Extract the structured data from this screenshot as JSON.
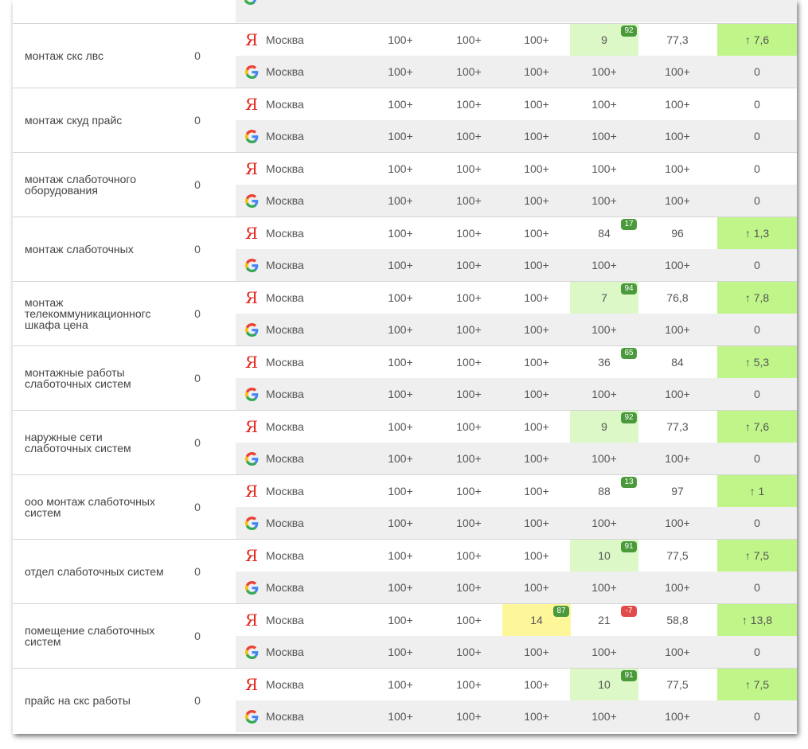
{
  "colors": {
    "yandex": "#e1251b",
    "highlight_green": "#dcf8c6",
    "highlight_yellow": "#fdf79a",
    "trend_green": "#c0f58a",
    "badge_positive": "#4a9a3c",
    "badge_negative": "#e14b4b"
  },
  "icons": {
    "yandex": "yandex-icon",
    "google": "google-icon"
  },
  "yandex_glyph": "Я",
  "groups": [
    {
      "keyword": "монтаж скс лвс",
      "count": "0",
      "yandex": {
        "city": "Москва",
        "c1": "100+",
        "c2": "100+",
        "c3": "100+",
        "c4": "9",
        "c4_badge": "92",
        "c4_badge_type": "pos",
        "c4_hl": "green",
        "c3_badge": "",
        "c3_hl": "",
        "c5": "77,3",
        "c6": "↑ 7,6",
        "c6_hl": true
      },
      "google": {
        "city": "Москва",
        "c1": "100+",
        "c2": "100+",
        "c3": "100+",
        "c4": "100+",
        "c5": "100+",
        "c6": "0"
      }
    },
    {
      "keyword": "монтаж скуд прайс",
      "count": "0",
      "yandex": {
        "city": "Москва",
        "c1": "100+",
        "c2": "100+",
        "c3": "100+",
        "c4": "100+",
        "c4_badge": "",
        "c4_badge_type": "",
        "c4_hl": "",
        "c3_badge": "",
        "c3_hl": "",
        "c5": "100+",
        "c6": "0",
        "c6_hl": false
      },
      "google": {
        "city": "Москва",
        "c1": "100+",
        "c2": "100+",
        "c3": "100+",
        "c4": "100+",
        "c5": "100+",
        "c6": "0"
      }
    },
    {
      "keyword": "монтаж слаботочного оборудования",
      "count": "0",
      "yandex": {
        "city": "Москва",
        "c1": "100+",
        "c2": "100+",
        "c3": "100+",
        "c4": "100+",
        "c4_badge": "",
        "c4_badge_type": "",
        "c4_hl": "",
        "c3_badge": "",
        "c3_hl": "",
        "c5": "100+",
        "c6": "0",
        "c6_hl": false
      },
      "google": {
        "city": "Москва",
        "c1": "100+",
        "c2": "100+",
        "c3": "100+",
        "c4": "100+",
        "c5": "100+",
        "c6": "0"
      }
    },
    {
      "keyword": "монтаж слаботочных",
      "count": "0",
      "yandex": {
        "city": "Москва",
        "c1": "100+",
        "c2": "100+",
        "c3": "100+",
        "c4": "84",
        "c4_badge": "17",
        "c4_badge_type": "pos",
        "c4_hl": "",
        "c3_badge": "",
        "c3_hl": "",
        "c5": "96",
        "c6": "↑ 1,3",
        "c6_hl": true
      },
      "google": {
        "city": "Москва",
        "c1": "100+",
        "c2": "100+",
        "c3": "100+",
        "c4": "100+",
        "c5": "100+",
        "c6": "0"
      }
    },
    {
      "keyword": "монтаж телекоммуникационногс шкафа цена",
      "count": "0",
      "yandex": {
        "city": "Москва",
        "c1": "100+",
        "c2": "100+",
        "c3": "100+",
        "c4": "7",
        "c4_badge": "94",
        "c4_badge_type": "pos",
        "c4_hl": "green",
        "c3_badge": "",
        "c3_hl": "",
        "c5": "76,8",
        "c6": "↑ 7,8",
        "c6_hl": true
      },
      "google": {
        "city": "Москва",
        "c1": "100+",
        "c2": "100+",
        "c3": "100+",
        "c4": "100+",
        "c5": "100+",
        "c6": "0"
      }
    },
    {
      "keyword": "монтажные работы слаботочных систем",
      "count": "0",
      "yandex": {
        "city": "Москва",
        "c1": "100+",
        "c2": "100+",
        "c3": "100+",
        "c4": "36",
        "c4_badge": "65",
        "c4_badge_type": "pos",
        "c4_hl": "",
        "c3_badge": "",
        "c3_hl": "",
        "c5": "84",
        "c6": "↑ 5,3",
        "c6_hl": true
      },
      "google": {
        "city": "Москва",
        "c1": "100+",
        "c2": "100+",
        "c3": "100+",
        "c4": "100+",
        "c5": "100+",
        "c6": "0"
      }
    },
    {
      "keyword": "наружные сети слаботочных систем",
      "count": "0",
      "yandex": {
        "city": "Москва",
        "c1": "100+",
        "c2": "100+",
        "c3": "100+",
        "c4": "9",
        "c4_badge": "92",
        "c4_badge_type": "pos",
        "c4_hl": "green",
        "c3_badge": "",
        "c3_hl": "",
        "c5": "77,3",
        "c6": "↑ 7,6",
        "c6_hl": true
      },
      "google": {
        "city": "Москва",
        "c1": "100+",
        "c2": "100+",
        "c3": "100+",
        "c4": "100+",
        "c5": "100+",
        "c6": "0"
      }
    },
    {
      "keyword": "ооо монтаж слаботочных систем",
      "count": "0",
      "yandex": {
        "city": "Москва",
        "c1": "100+",
        "c2": "100+",
        "c3": "100+",
        "c4": "88",
        "c4_badge": "13",
        "c4_badge_type": "pos",
        "c4_hl": "",
        "c3_badge": "",
        "c3_hl": "",
        "c5": "97",
        "c6": "↑ 1",
        "c6_hl": true
      },
      "google": {
        "city": "Москва",
        "c1": "100+",
        "c2": "100+",
        "c3": "100+",
        "c4": "100+",
        "c5": "100+",
        "c6": "0"
      }
    },
    {
      "keyword": "отдел слаботочных систем",
      "count": "0",
      "yandex": {
        "city": "Москва",
        "c1": "100+",
        "c2": "100+",
        "c3": "100+",
        "c4": "10",
        "c4_badge": "91",
        "c4_badge_type": "pos",
        "c4_hl": "green",
        "c3_badge": "",
        "c3_hl": "",
        "c5": "77,5",
        "c6": "↑ 7,5",
        "c6_hl": true
      },
      "google": {
        "city": "Москва",
        "c1": "100+",
        "c2": "100+",
        "c3": "100+",
        "c4": "100+",
        "c5": "100+",
        "c6": "0"
      }
    },
    {
      "keyword": "помещение слаботочных систем",
      "count": "0",
      "yandex": {
        "city": "Москва",
        "c1": "100+",
        "c2": "100+",
        "c3": "14",
        "c3_badge": "87",
        "c3_hl": "yellow",
        "c4": "21",
        "c4_badge": "-7",
        "c4_badge_type": "neg",
        "c4_hl": "",
        "c5": "58,8",
        "c6": "↑ 13,8",
        "c6_hl": true
      },
      "google": {
        "city": "Москва",
        "c1": "100+",
        "c2": "100+",
        "c3": "100+",
        "c4": "100+",
        "c5": "100+",
        "c6": "0"
      }
    },
    {
      "keyword": "прайс на скс работы",
      "count": "0",
      "yandex": {
        "city": "Москва",
        "c1": "100+",
        "c2": "100+",
        "c3": "100+",
        "c4": "10",
        "c4_badge": "91",
        "c4_badge_type": "pos",
        "c4_hl": "green",
        "c3_badge": "",
        "c3_hl": "",
        "c5": "77,5",
        "c6": "↑ 7,5",
        "c6_hl": true
      },
      "google": {
        "city": "Москва",
        "c1": "100+",
        "c2": "100+",
        "c3": "100+",
        "c4": "100+",
        "c5": "100+",
        "c6": "0"
      }
    }
  ]
}
